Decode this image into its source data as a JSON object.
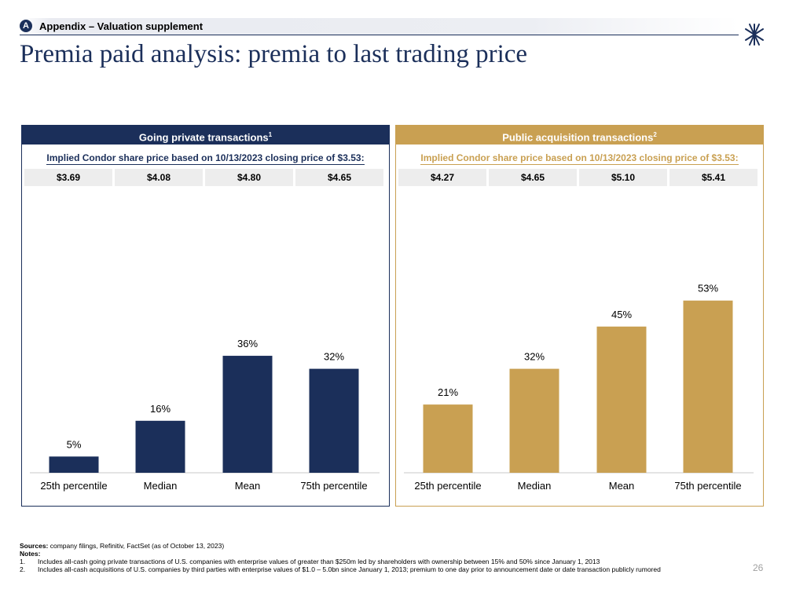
{
  "header": {
    "badge": "A",
    "section_label": "Appendix – Valuation supplement",
    "title": "Premia paid analysis: premia to last trading price"
  },
  "colors": {
    "navy": "#1b2f5a",
    "gold": "#c9a052",
    "price_bg": "#ededed"
  },
  "chart_data": [
    {
      "type": "bar",
      "title": "Going private transactions",
      "title_sup": "1",
      "subtitle": "Implied Condor share price based on 10/13/2023 closing price of $3.53:",
      "prices": [
        "$3.69",
        "$4.08",
        "$4.80",
        "$4.65"
      ],
      "categories": [
        "25th percentile",
        "Median",
        "Mean",
        "75th percentile"
      ],
      "values": [
        5,
        16,
        36,
        32
      ],
      "labels": [
        "5%",
        "16%",
        "36%",
        "32%"
      ],
      "ylim": [
        0,
        80
      ],
      "color": "#1b2f5a"
    },
    {
      "type": "bar",
      "title": "Public acquisition transactions",
      "title_sup": "2",
      "subtitle": "Implied Condor share price based on 10/13/2023 closing price of $3.53:",
      "prices": [
        "$4.27",
        "$4.65",
        "$5.10",
        "$5.41"
      ],
      "categories": [
        "25th percentile",
        "Median",
        "Mean",
        "75th percentile"
      ],
      "values": [
        21,
        32,
        45,
        53
      ],
      "labels": [
        "21%",
        "32%",
        "45%",
        "53%"
      ],
      "ylim": [
        0,
        80
      ],
      "color": "#c9a052"
    }
  ],
  "footer": {
    "sources_label": "Sources:",
    "sources_text": " company filings, Refinitiv, FactSet (as of October 13, 2023)",
    "notes_label": "Notes:",
    "notes": [
      {
        "num": "1.",
        "text": "Includes all-cash going private transactions of U.S. companies with enterprise values of greater than $250m led by shareholders with ownership between 15% and 50% since January 1, 2013"
      },
      {
        "num": "2.",
        "text": "Includes all-cash acquisitions of U.S. companies by third parties with enterprise values of $1.0 – 5.0bn since January 1, 2013; premium to one day prior to announcement date or date transaction publicly rumored"
      }
    ]
  },
  "page_number": "26"
}
